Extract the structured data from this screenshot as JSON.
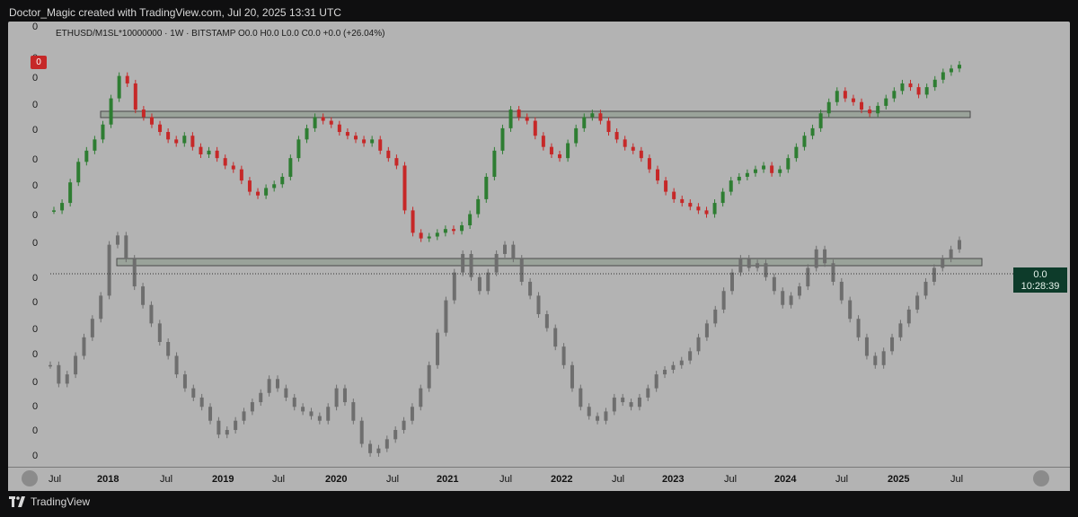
{
  "header": {
    "attribution": "Doctor_Magic created with TradingView.com, Jul 20, 2025 13:31 UTC"
  },
  "legend": {
    "text": "ETHUSD/M1SL*10000000 · 1W · BITSTAMP  O0.0  H0.0  L0.0  C0.0  +0.0 (+26.04%)"
  },
  "price_badge": {
    "value": "0.0",
    "countdown": "10:28:39"
  },
  "red_badge": "0",
  "y_axis_labels": [
    "0",
    "0",
    "0",
    "0",
    "0",
    "0",
    "0",
    "0",
    "0",
    "0",
    "0",
    "0",
    "0",
    "0",
    "0",
    "0",
    "0",
    "0"
  ],
  "time_axis": [
    {
      "label": "Jul",
      "year": false
    },
    {
      "label": "2018",
      "year": true
    },
    {
      "label": "Jul",
      "year": false
    },
    {
      "label": "2019",
      "year": true
    },
    {
      "label": "Jul",
      "year": false
    },
    {
      "label": "2020",
      "year": true
    },
    {
      "label": "Jul",
      "year": false
    },
    {
      "label": "2021",
      "year": true
    },
    {
      "label": "Jul",
      "year": false
    },
    {
      "label": "2022",
      "year": true
    },
    {
      "label": "Jul",
      "year": false
    },
    {
      "label": "2023",
      "year": true
    },
    {
      "label": "Jul",
      "year": false
    },
    {
      "label": "2024",
      "year": true
    },
    {
      "label": "Jul",
      "year": false
    },
    {
      "label": "2025",
      "year": true
    },
    {
      "label": "Jul",
      "year": false
    }
  ],
  "footer": {
    "brand": "TradingView"
  },
  "colors": {
    "background": "#b3b3b3",
    "up_candle": "#2e7d32",
    "down_candle": "#c62828",
    "grey_candle": "#6e6e6e",
    "zone_fill": "#9aa39a"
  },
  "chart_data": [
    {
      "type": "line",
      "series": [
        {
          "values": [
            20,
            24,
            35,
            46,
            52,
            58,
            66,
            80,
            92,
            88,
            74,
            70,
            66,
            62,
            58,
            56,
            60,
            54,
            50,
            52,
            48,
            44,
            42,
            36,
            30,
            28,
            32,
            34,
            38,
            48,
            58,
            64,
            70,
            68,
            66,
            62,
            60,
            58,
            56,
            58,
            52,
            48,
            44,
            20,
            8,
            5,
            6,
            8,
            10,
            9,
            12,
            18,
            26,
            38,
            52,
            64,
            74,
            70,
            68,
            60,
            54,
            50,
            48,
            56,
            64,
            70,
            72,
            68,
            62,
            58,
            54,
            52,
            48,
            42,
            36,
            30,
            26,
            24,
            22,
            20,
            18,
            24,
            30,
            36,
            38,
            40,
            42,
            44,
            40,
            42,
            48,
            54,
            60,
            64,
            72,
            78,
            84,
            80,
            78,
            74,
            72,
            76,
            80,
            84,
            88,
            86,
            82,
            86,
            90,
            94,
            96,
            98
          ]
        }
      ]
    },
    {
      "type": "line",
      "series": [
        {
          "values": [
            40,
            32,
            36,
            44,
            52,
            60,
            70,
            92,
            96,
            86,
            74,
            66,
            58,
            50,
            44,
            36,
            30,
            26,
            22,
            16,
            10,
            12,
            16,
            20,
            24,
            28,
            34,
            30,
            26,
            22,
            20,
            18,
            16,
            22,
            30,
            24,
            16,
            6,
            2,
            4,
            8,
            12,
            16,
            22,
            30,
            40,
            54,
            68,
            80,
            88,
            78,
            72,
            80,
            88,
            92,
            86,
            76,
            70,
            62,
            56,
            48,
            40,
            30,
            22,
            18,
            16,
            20,
            26,
            24,
            22,
            26,
            30,
            36,
            38,
            40,
            42,
            46,
            52,
            58,
            64,
            72,
            80,
            86,
            82,
            84,
            78,
            72,
            66,
            70,
            74,
            82,
            90,
            84,
            76,
            68,
            60,
            52,
            44,
            40,
            46,
            52,
            58,
            64,
            70,
            76,
            82,
            86,
            90,
            94
          ]
        }
      ]
    }
  ]
}
